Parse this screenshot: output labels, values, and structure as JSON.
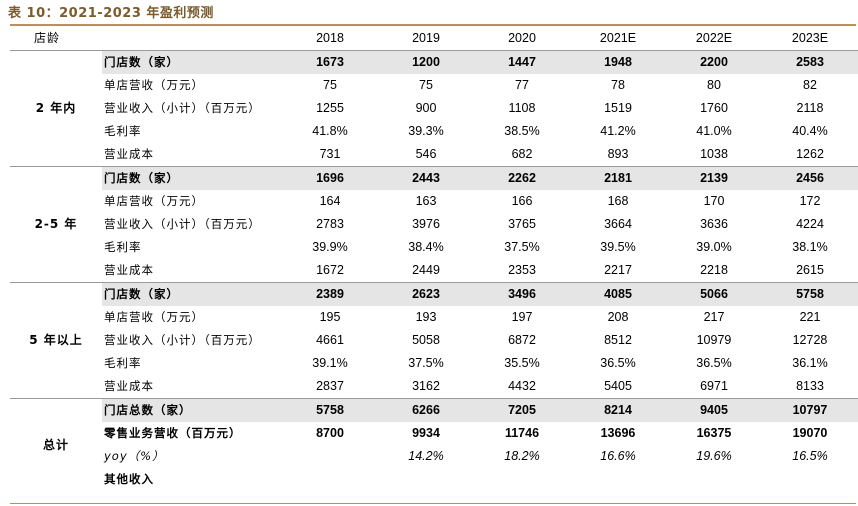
{
  "title": "表 10：2021-2023 年盈利预测",
  "corner_label": "店龄",
  "years": [
    "2018",
    "2019",
    "2020",
    "2021E",
    "2022E",
    "2023E"
  ],
  "groups": [
    {
      "name": "2 年内",
      "rows": [
        {
          "label": "门店数（家）",
          "values": [
            "1673",
            "1200",
            "1447",
            "1948",
            "2200",
            "2583"
          ]
        },
        {
          "label": "单店营收（万元）",
          "values": [
            "75",
            "75",
            "77",
            "78",
            "80",
            "82"
          ]
        },
        {
          "label": "营业收入（小计）（百万元）",
          "values": [
            "1255",
            "900",
            "1108",
            "1519",
            "1760",
            "2118"
          ]
        },
        {
          "label": "毛利率",
          "values": [
            "41.8%",
            "39.3%",
            "38.5%",
            "41.2%",
            "41.0%",
            "40.4%"
          ]
        },
        {
          "label": "营业成本",
          "values": [
            "731",
            "546",
            "682",
            "893",
            "1038",
            "1262"
          ]
        }
      ]
    },
    {
      "name": "2-5 年",
      "rows": [
        {
          "label": "门店数（家）",
          "values": [
            "1696",
            "2443",
            "2262",
            "2181",
            "2139",
            "2456"
          ]
        },
        {
          "label": "单店营收（万元）",
          "values": [
            "164",
            "163",
            "166",
            "168",
            "170",
            "172"
          ]
        },
        {
          "label": "营业收入（小计）（百万元）",
          "values": [
            "2783",
            "3976",
            "3765",
            "3664",
            "3636",
            "4224"
          ]
        },
        {
          "label": "毛利率",
          "values": [
            "39.9%",
            "38.4%",
            "37.5%",
            "39.5%",
            "39.0%",
            "38.1%"
          ]
        },
        {
          "label": "营业成本",
          "values": [
            "1672",
            "2449",
            "2353",
            "2217",
            "2218",
            "2615"
          ]
        }
      ]
    },
    {
      "name": "5 年以上",
      "rows": [
        {
          "label": "门店数（家）",
          "values": [
            "2389",
            "2623",
            "3496",
            "4085",
            "5066",
            "5758"
          ]
        },
        {
          "label": "单店营收（万元）",
          "values": [
            "195",
            "193",
            "197",
            "208",
            "217",
            "221"
          ]
        },
        {
          "label": "营业收入（小计）（百万元）",
          "values": [
            "4661",
            "5058",
            "6872",
            "8512",
            "10979",
            "12728"
          ]
        },
        {
          "label": "毛利率",
          "values": [
            "39.1%",
            "37.5%",
            "35.5%",
            "36.5%",
            "36.5%",
            "36.1%"
          ]
        },
        {
          "label": "营业成本",
          "values": [
            "2837",
            "3162",
            "4432",
            "5405",
            "6971",
            "8133"
          ]
        }
      ]
    },
    {
      "name": "总计",
      "rows": [
        {
          "label": "门店总数（家）",
          "values": [
            "5758",
            "6266",
            "7205",
            "8214",
            "9405",
            "10797"
          ]
        },
        {
          "label": "零售业务营收（百万元）",
          "values": [
            "8700",
            "9934",
            "11746",
            "13696",
            "16375",
            "19070"
          ]
        },
        {
          "label": "yoy（%）",
          "values": [
            "",
            "14.2%",
            "18.2%",
            "16.6%",
            "19.6%",
            "16.5%"
          ]
        },
        {
          "label": "其他收入",
          "values": [
            "",
            "",
            "",
            "",
            "",
            ""
          ]
        }
      ]
    }
  ]
}
